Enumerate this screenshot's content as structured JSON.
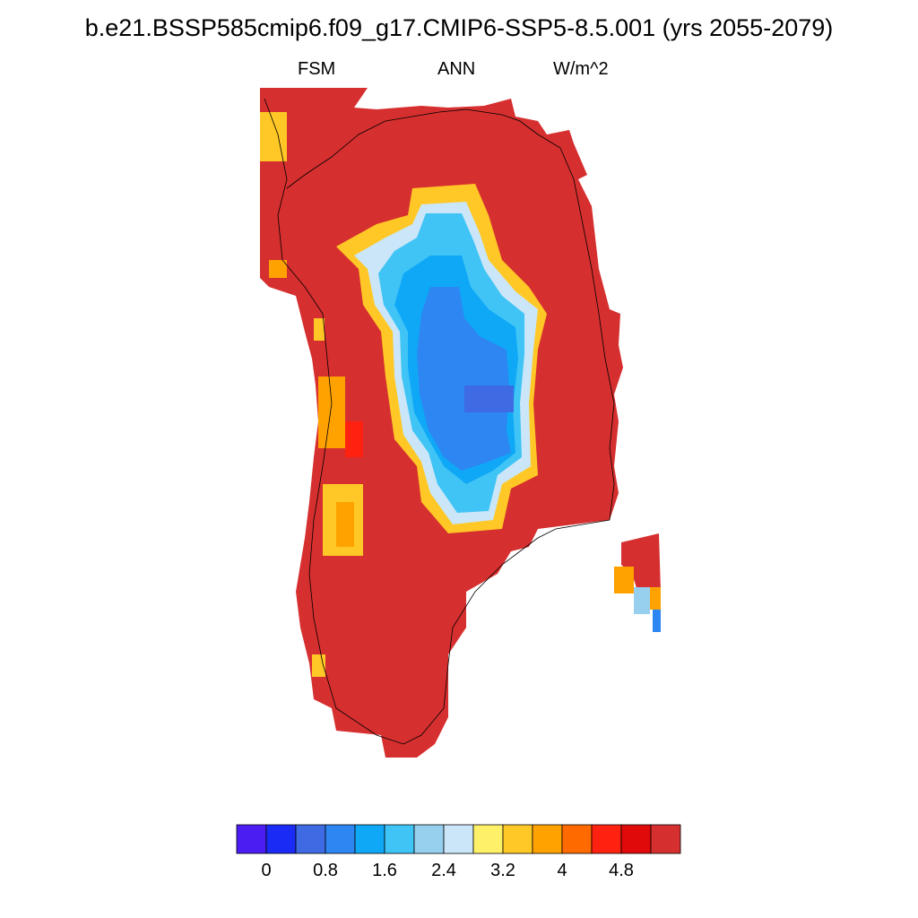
{
  "title": "b.e21.BSSP585cmip6.f09_g17.CMIP6-SSP5-8.5.001 (yrs 2055-2079)",
  "subtitle": {
    "left": "FSM",
    "center": "ANN",
    "right": "W/m^2"
  },
  "colorbar": {
    "colors": [
      "#4b1df2",
      "#1a2bf5",
      "#3e6be3",
      "#2d86f2",
      "#0fa8f7",
      "#3fc4f5",
      "#97cfef",
      "#cae6f8",
      "#fff06a",
      "#ffc826",
      "#ffa200",
      "#ff6a00",
      "#ff2210",
      "#e00a0a",
      "#d62f2f"
    ],
    "labels": [
      "0",
      "0.8",
      "1.6",
      "2.4",
      "3.2",
      "4",
      "4.8"
    ]
  },
  "chart_data": {
    "type": "map",
    "title": "b.e21.BSSP585cmip6.f09_g17.CMIP6-SSP5-8.5.001 (yrs 2055-2079)",
    "variable": "FSM",
    "season": "ANN",
    "units": "W/m^2",
    "region": "Greenland",
    "levels": [
      0,
      0.4,
      0.8,
      1.2,
      1.6,
      2.0,
      2.4,
      2.8,
      3.2,
      3.6,
      4.0,
      4.4,
      4.8,
      5.2
    ],
    "pattern": "values near or above 5.2 W/m^2 around the coastal margins; values roughly 0.8-2.4 W/m^2 across the central interior ice sheet"
  }
}
